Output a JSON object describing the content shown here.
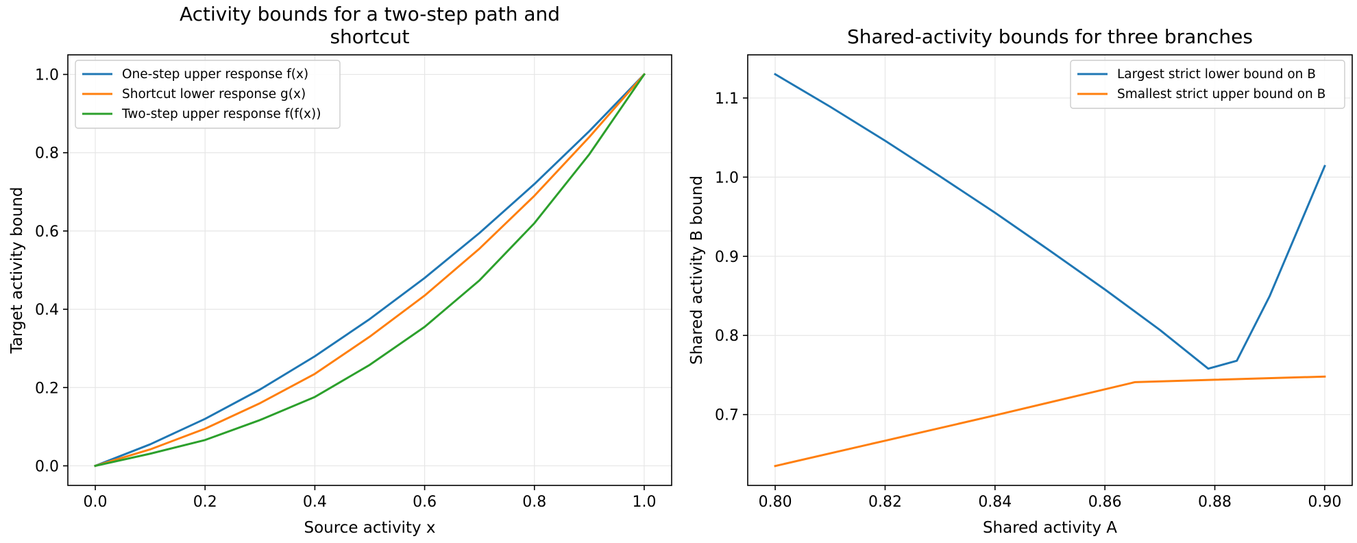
{
  "chart_data": [
    {
      "type": "line",
      "title": "Activity bounds for a two-step path and\nshortcut",
      "xlabel": "Source activity x",
      "ylabel": "Target activity bound",
      "xlim": [
        -0.05,
        1.05
      ],
      "ylim": [
        -0.05,
        1.05
      ],
      "xticks": [
        0.0,
        0.2,
        0.4,
        0.6,
        0.8,
        1.0
      ],
      "xtick_labels": [
        "0.0",
        "0.2",
        "0.4",
        "0.6",
        "0.8",
        "1.0"
      ],
      "yticks": [
        0.0,
        0.2,
        0.4,
        0.6,
        0.8,
        1.0
      ],
      "ytick_labels": [
        "0.0",
        "0.2",
        "0.4",
        "0.6",
        "0.8",
        "1.0"
      ],
      "grid": true,
      "legend_position": "upper-left",
      "series": [
        {
          "name": "One-step upper response f(x)",
          "color": "#1f77b4",
          "x": [
            0.0,
            0.1,
            0.2,
            0.3,
            0.4,
            0.5,
            0.6,
            0.7,
            0.8,
            0.9,
            1.0
          ],
          "y": [
            0.0,
            0.055,
            0.12,
            0.195,
            0.28,
            0.375,
            0.48,
            0.595,
            0.72,
            0.855,
            1.0
          ]
        },
        {
          "name": "Shortcut lower response g(x)",
          "color": "#ff7f0e",
          "x": [
            0.0,
            0.1,
            0.2,
            0.3,
            0.4,
            0.5,
            0.6,
            0.7,
            0.8,
            0.9,
            1.0
          ],
          "y": [
            0.0,
            0.042,
            0.095,
            0.16,
            0.235,
            0.33,
            0.435,
            0.555,
            0.69,
            0.84,
            1.0
          ]
        },
        {
          "name": "Two-step upper response f(f(x))",
          "color": "#2ca02c",
          "x": [
            0.0,
            0.1,
            0.2,
            0.3,
            0.4,
            0.5,
            0.6,
            0.7,
            0.8,
            0.9,
            1.0
          ],
          "y": [
            0.0,
            0.031,
            0.066,
            0.117,
            0.176,
            0.258,
            0.355,
            0.474,
            0.62,
            0.796,
            1.0
          ]
        }
      ]
    },
    {
      "type": "line",
      "title": "Shared-activity bounds for three branches",
      "xlabel": "Shared activity A",
      "ylabel": "Shared activity B bound",
      "xlim": [
        0.795,
        0.905
      ],
      "ylim": [
        0.6105,
        1.1545
      ],
      "xticks": [
        0.8,
        0.82,
        0.84,
        0.86,
        0.88,
        0.9
      ],
      "xtick_labels": [
        "0.80",
        "0.82",
        "0.84",
        "0.86",
        "0.88",
        "0.90"
      ],
      "yticks": [
        0.7,
        0.8,
        0.9,
        1.0,
        1.1
      ],
      "ytick_labels": [
        "0.7",
        "0.8",
        "0.9",
        "1.0",
        "1.1"
      ],
      "grid": true,
      "legend_position": "upper-right",
      "series": [
        {
          "name": "Largest strict lower bound on B",
          "color": "#1f77b4",
          "x": [
            0.8,
            0.81,
            0.82,
            0.83,
            0.84,
            0.85,
            0.86,
            0.87,
            0.8788,
            0.884,
            0.89,
            0.9
          ],
          "y": [
            1.13,
            1.089,
            1.046,
            1.001,
            0.955,
            0.907,
            0.858,
            0.807,
            0.758,
            0.768,
            0.85,
            1.014
          ]
        },
        {
          "name": "Smallest strict upper bound on B",
          "color": "#ff7f0e",
          "x": [
            0.8,
            0.82,
            0.84,
            0.8655,
            0.88,
            0.9
          ],
          "y": [
            0.635,
            0.667,
            0.699,
            0.741,
            0.744,
            0.748
          ]
        }
      ]
    }
  ]
}
